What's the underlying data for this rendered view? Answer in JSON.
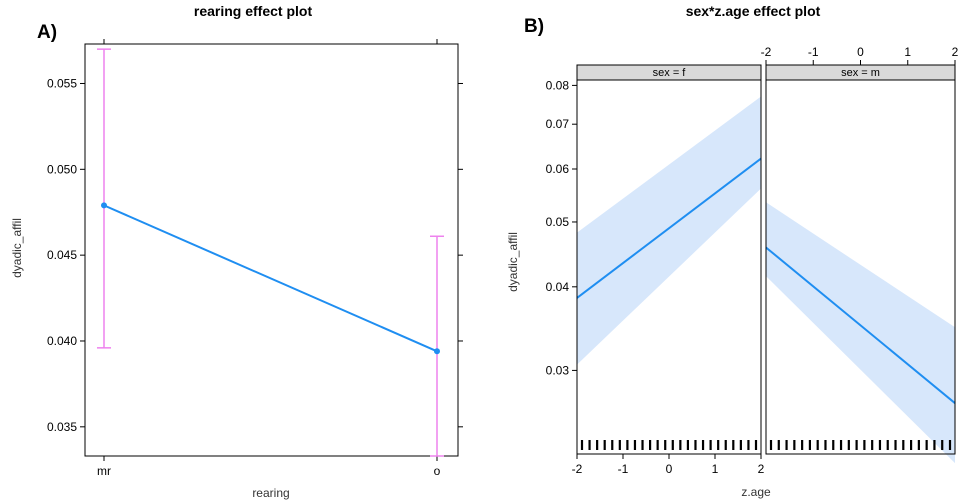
{
  "panel_labels": {
    "a": "A)",
    "b": "B)"
  },
  "colors": {
    "line": "#1f8ef1",
    "errorbar": "#ee82ee",
    "band": "#d7e7fb",
    "strip": "#d9d9d9",
    "rug": "#000000"
  },
  "chart_data": [
    {
      "type": "line",
      "title": "rearing effect plot",
      "xlabel": "rearing",
      "ylabel": "dyadic_affil",
      "categories": [
        "mr",
        "o"
      ],
      "values": [
        0.0479,
        0.0394
      ],
      "lower": [
        0.0396,
        0.0333
      ],
      "upper": [
        0.057,
        0.0461
      ],
      "yticks": [
        "0.035",
        "0.040",
        "0.045",
        "0.050",
        "0.055"
      ],
      "ylim": [
        0.0333,
        0.0573
      ],
      "grid": false
    },
    {
      "type": "line",
      "title": "sex*z.age effect plot",
      "xlabel": "z.age",
      "ylabel": "dyadic_affil",
      "yscale": "log",
      "ylim": [
        0.0225,
        0.0815
      ],
      "xlim": [
        -2,
        2
      ],
      "xticks": [
        "-2",
        "-1",
        "0",
        "1",
        "2"
      ],
      "yticks": [
        "0.03",
        "0.04",
        "0.05",
        "0.06",
        "0.07",
        "0.08"
      ],
      "panels": [
        {
          "strip": "sex = f",
          "x": [
            -2,
            2
          ],
          "fit": [
            0.0385,
            0.0622
          ],
          "lower": [
            0.0306,
            0.0561
          ],
          "upper": [
            0.0482,
            0.077
          ]
        },
        {
          "strip": "sex = m",
          "x": [
            -2,
            2
          ],
          "fit": [
            0.0458,
            0.0268
          ],
          "lower": [
            0.0415,
            0.0218
          ],
          "upper": [
            0.0535,
            0.0348
          ]
        }
      ],
      "grid": false
    }
  ]
}
